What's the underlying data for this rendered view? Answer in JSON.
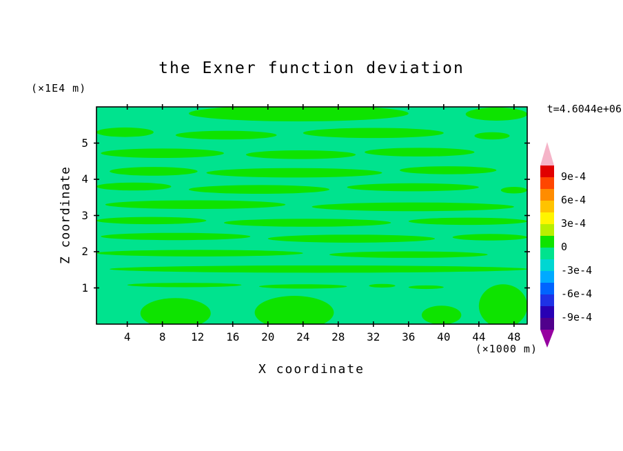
{
  "colors": {
    "page_background": "#ffffff",
    "frame": "#000000",
    "text": "#000000"
  },
  "chart_data": {
    "type": "filled_contour",
    "title": "the Exner function deviation",
    "time_annotation": "t=4.6044e+06",
    "xlabel": "X coordinate",
    "ylabel": "Z coordinate",
    "x_axis_unit": "(×1000 m)",
    "y_axis_unit": "(×1E4 m)",
    "xlim": [
      0.5,
      49.5
    ],
    "ylim": [
      0,
      6
    ],
    "x_ticks": [
      4,
      8,
      12,
      16,
      20,
      24,
      28,
      32,
      36,
      40,
      44,
      48
    ],
    "y_ticks": [
      1,
      2,
      3,
      4,
      5
    ],
    "grid": false,
    "legend_position": "right-colorbar",
    "field": {
      "description": "Exner function deviation field, values close to zero everywhere; background band between -1.5e-4 and 0, with irregular horizontal streak bands between 0 and 1.5e-4",
      "background_band": {
        "range": [
          -0.00015,
          0
        ],
        "color": "#00e38e"
      },
      "streak_band": {
        "range": [
          0,
          0.00015
        ],
        "color": "#0ee300"
      },
      "streaks_x1_x2_z_halfheight": [
        [
          11,
          36,
          5.82,
          0.22
        ],
        [
          42.5,
          49.5,
          5.8,
          0.18
        ],
        [
          0.5,
          7,
          5.3,
          0.13
        ],
        [
          9.5,
          21,
          5.22,
          0.12
        ],
        [
          24,
          40,
          5.28,
          0.14
        ],
        [
          43.5,
          47.5,
          5.2,
          0.1
        ],
        [
          1,
          15,
          4.72,
          0.13
        ],
        [
          17.5,
          30,
          4.68,
          0.12
        ],
        [
          31,
          43.5,
          4.75,
          0.12
        ],
        [
          2,
          12,
          4.22,
          0.12
        ],
        [
          13,
          33,
          4.18,
          0.13
        ],
        [
          35,
          46,
          4.25,
          0.11
        ],
        [
          0.5,
          9,
          3.8,
          0.11
        ],
        [
          11,
          27,
          3.72,
          0.12
        ],
        [
          29,
          44,
          3.78,
          0.11
        ],
        [
          46.5,
          49.5,
          3.7,
          0.09
        ],
        [
          1.5,
          22,
          3.3,
          0.12
        ],
        [
          25,
          48,
          3.24,
          0.12
        ],
        [
          0.5,
          13,
          2.86,
          0.1
        ],
        [
          15,
          34,
          2.8,
          0.11
        ],
        [
          36,
          49.5,
          2.84,
          0.1
        ],
        [
          1,
          18,
          2.42,
          0.1
        ],
        [
          20,
          39,
          2.36,
          0.11
        ],
        [
          41,
          49.5,
          2.4,
          0.09
        ],
        [
          0.5,
          24,
          1.96,
          0.09
        ],
        [
          27,
          45,
          1.92,
          0.09
        ],
        [
          2,
          49.5,
          1.52,
          0.1
        ],
        [
          4,
          17,
          1.08,
          0.06
        ],
        [
          19,
          29,
          1.04,
          0.06
        ],
        [
          31.5,
          34.5,
          1.06,
          0.05
        ],
        [
          36,
          40,
          1.02,
          0.05
        ],
        [
          5.5,
          13.5,
          0.3,
          0.42
        ],
        [
          18.5,
          27.5,
          0.32,
          0.46
        ],
        [
          44,
          49.5,
          0.5,
          0.6
        ],
        [
          37.5,
          42,
          0.25,
          0.26
        ]
      ]
    },
    "colorbar": {
      "position": "right",
      "level_step": 0.00015,
      "range": [
        -0.00105,
        0.00105
      ],
      "tick_labels": [
        "9e-4",
        "6e-4",
        "3e-4",
        "0",
        "-3e-4",
        "-6e-4",
        "-9e-4"
      ],
      "segment_colors_top_to_bottom": [
        "#e10000",
        "#ff4600",
        "#ff8c00",
        "#ffc300",
        "#fff500",
        "#b9ef00",
        "#0ee300",
        "#00e38e",
        "#00d7d2",
        "#00aaff",
        "#0064ff",
        "#1e32e6",
        "#2800b4",
        "#50008c"
      ],
      "over_arrow_color": "#f5b4c8",
      "under_arrow_color": "#9600a0"
    }
  }
}
